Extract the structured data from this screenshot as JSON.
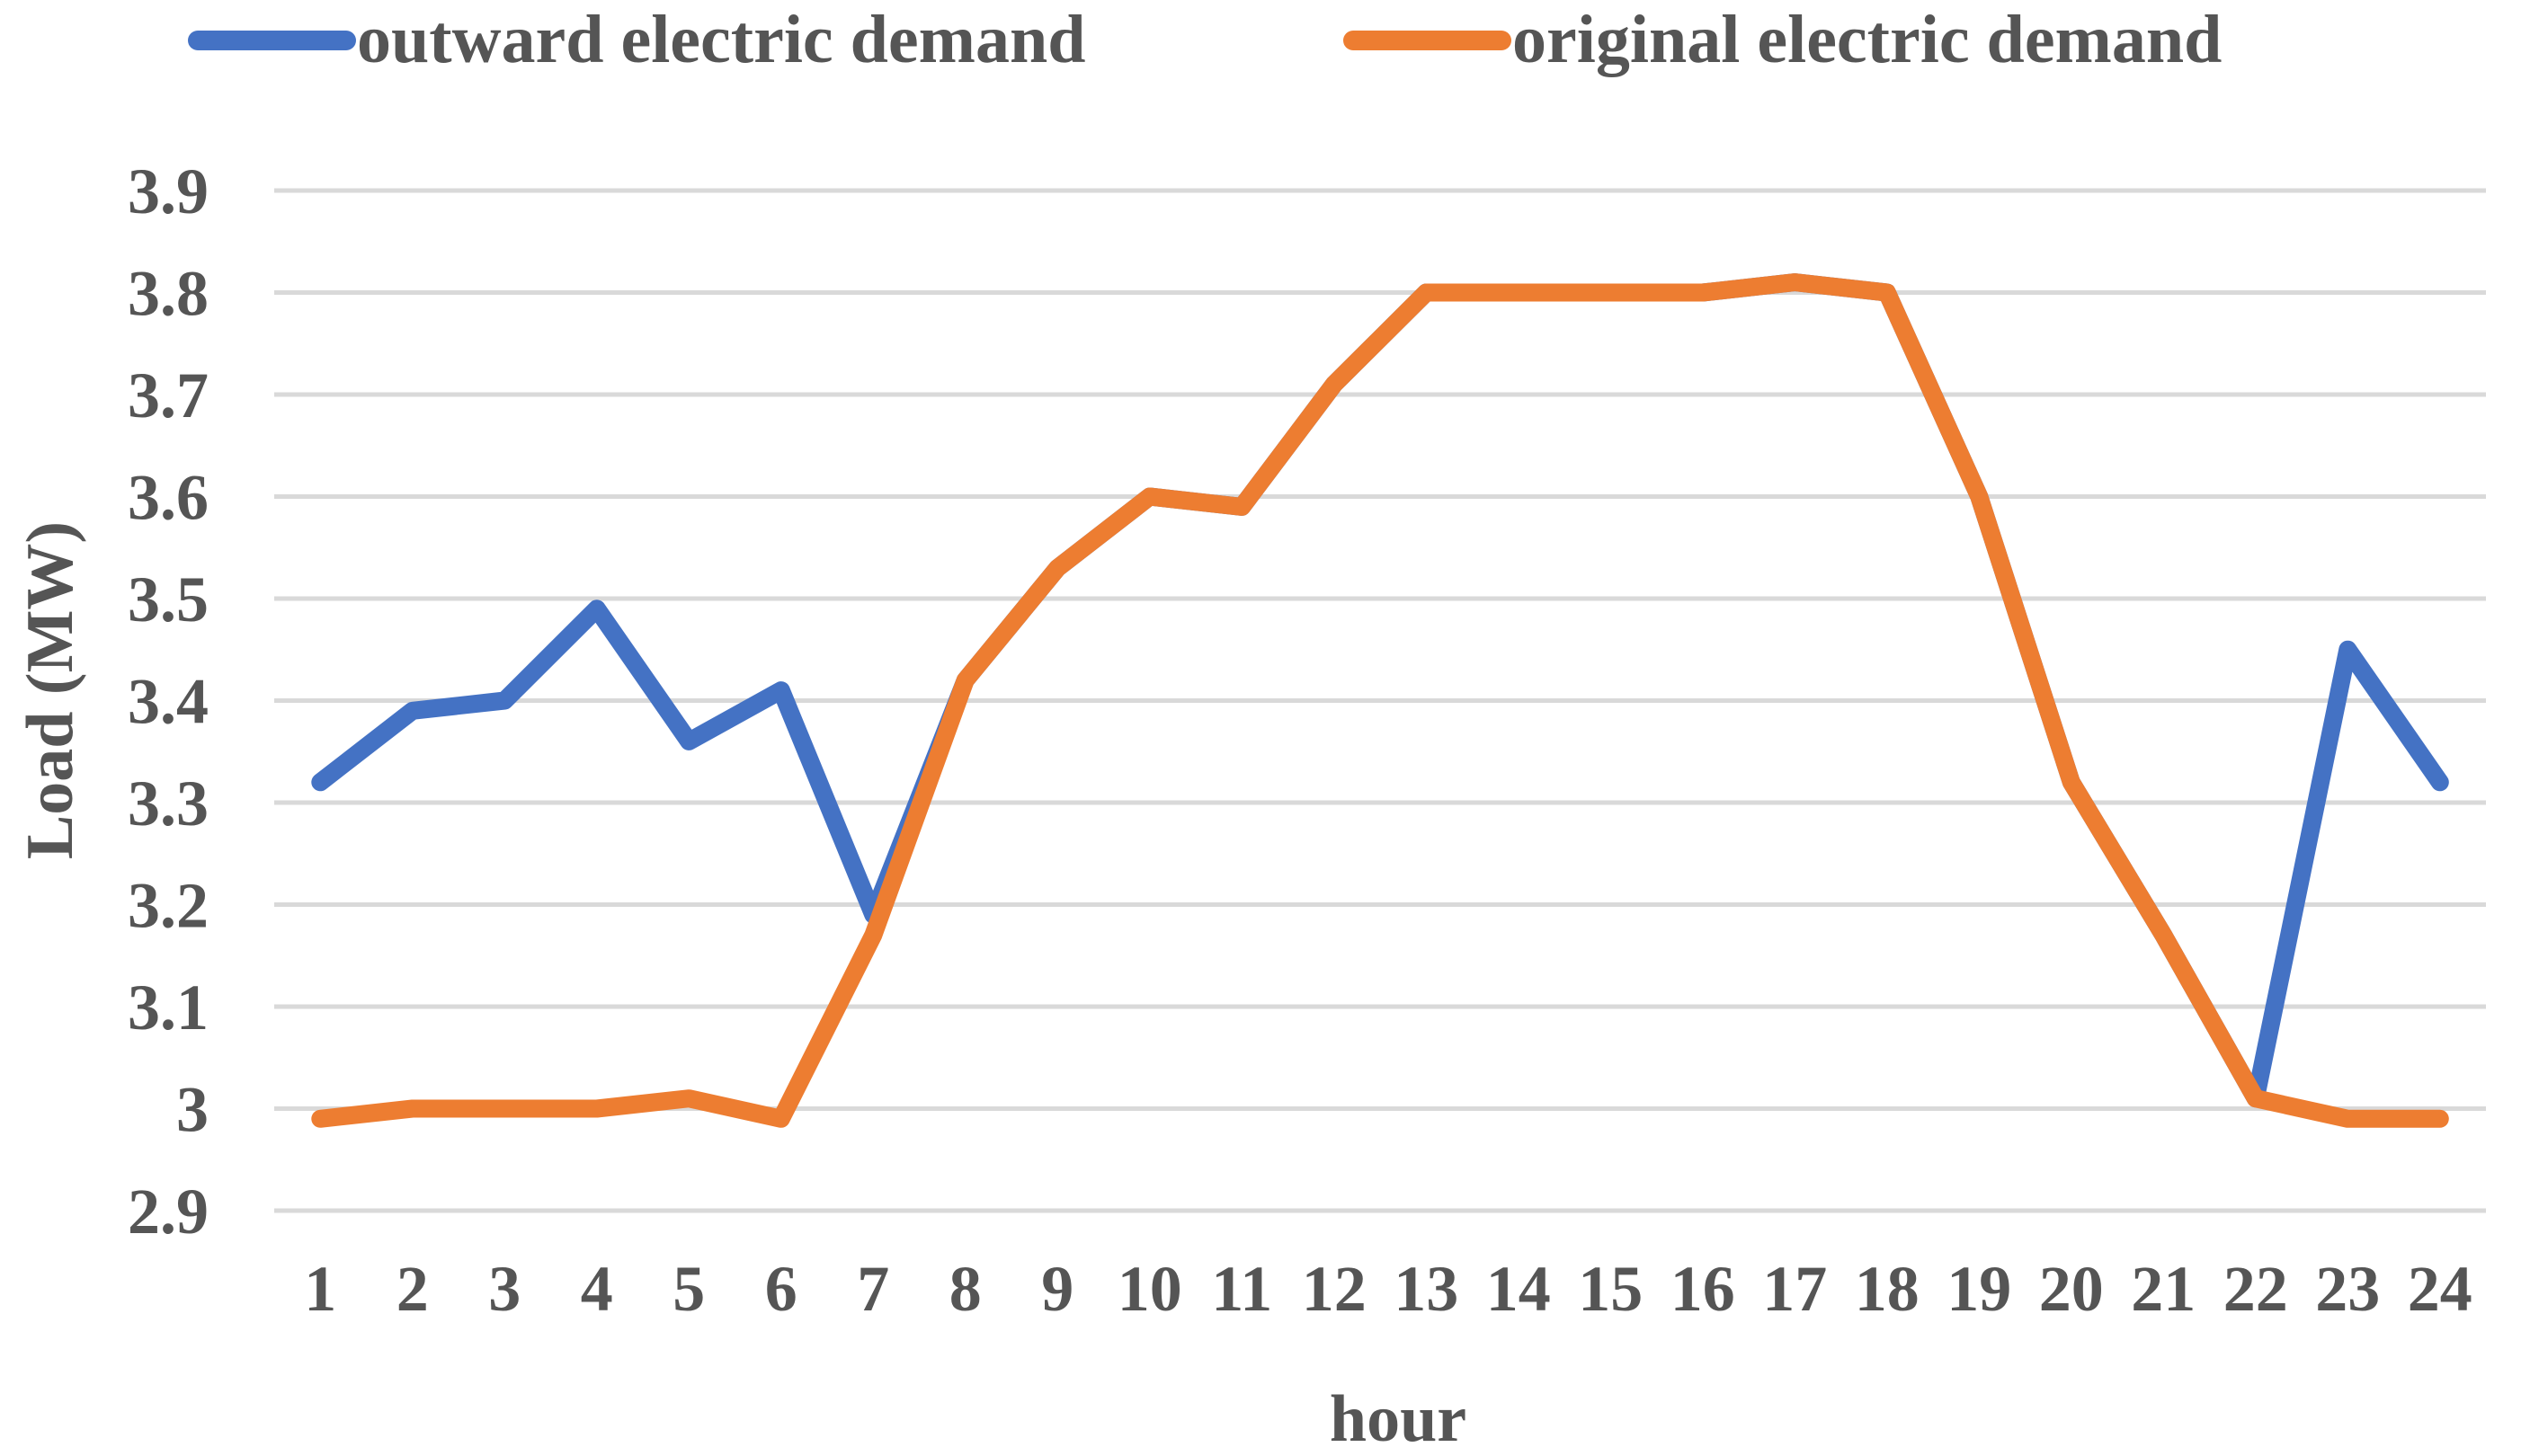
{
  "chart_data": {
    "type": "line",
    "title": "",
    "xlabel": "hour",
    "ylabel": "Load (MW)",
    "x": [
      1,
      2,
      3,
      4,
      5,
      6,
      7,
      8,
      9,
      10,
      11,
      12,
      13,
      14,
      15,
      16,
      17,
      18,
      19,
      20,
      21,
      22,
      23,
      24
    ],
    "ylim": [
      2.9,
      3.9
    ],
    "yticks": [
      "3.9",
      "3.8",
      "3.7",
      "3.6",
      "3.5",
      "3.4",
      "3.3",
      "3.2",
      "3.1",
      "3",
      "2.9"
    ],
    "ytick_values": [
      3.9,
      3.8,
      3.7,
      3.6,
      3.5,
      3.4,
      3.3,
      3.2,
      3.1,
      3.0,
      2.9
    ],
    "grid": true,
    "legend_position": "top",
    "series": [
      {
        "name": "outward electric demand",
        "color": "#4472c4",
        "values": [
          3.32,
          3.39,
          3.4,
          3.49,
          3.36,
          3.41,
          3.19,
          3.42,
          3.53,
          3.6,
          3.59,
          3.71,
          3.8,
          3.8,
          3.8,
          3.8,
          3.81,
          3.8,
          3.6,
          3.32,
          3.17,
          3.01,
          3.45,
          3.32
        ]
      },
      {
        "name": "original electric demand",
        "color": "#ed7d31",
        "values": [
          2.99,
          3.0,
          3.0,
          3.0,
          3.01,
          2.99,
          3.17,
          3.42,
          3.53,
          3.6,
          3.59,
          3.71,
          3.8,
          3.8,
          3.8,
          3.8,
          3.81,
          3.8,
          3.6,
          3.32,
          3.17,
          3.01,
          2.99,
          2.99
        ]
      }
    ]
  }
}
